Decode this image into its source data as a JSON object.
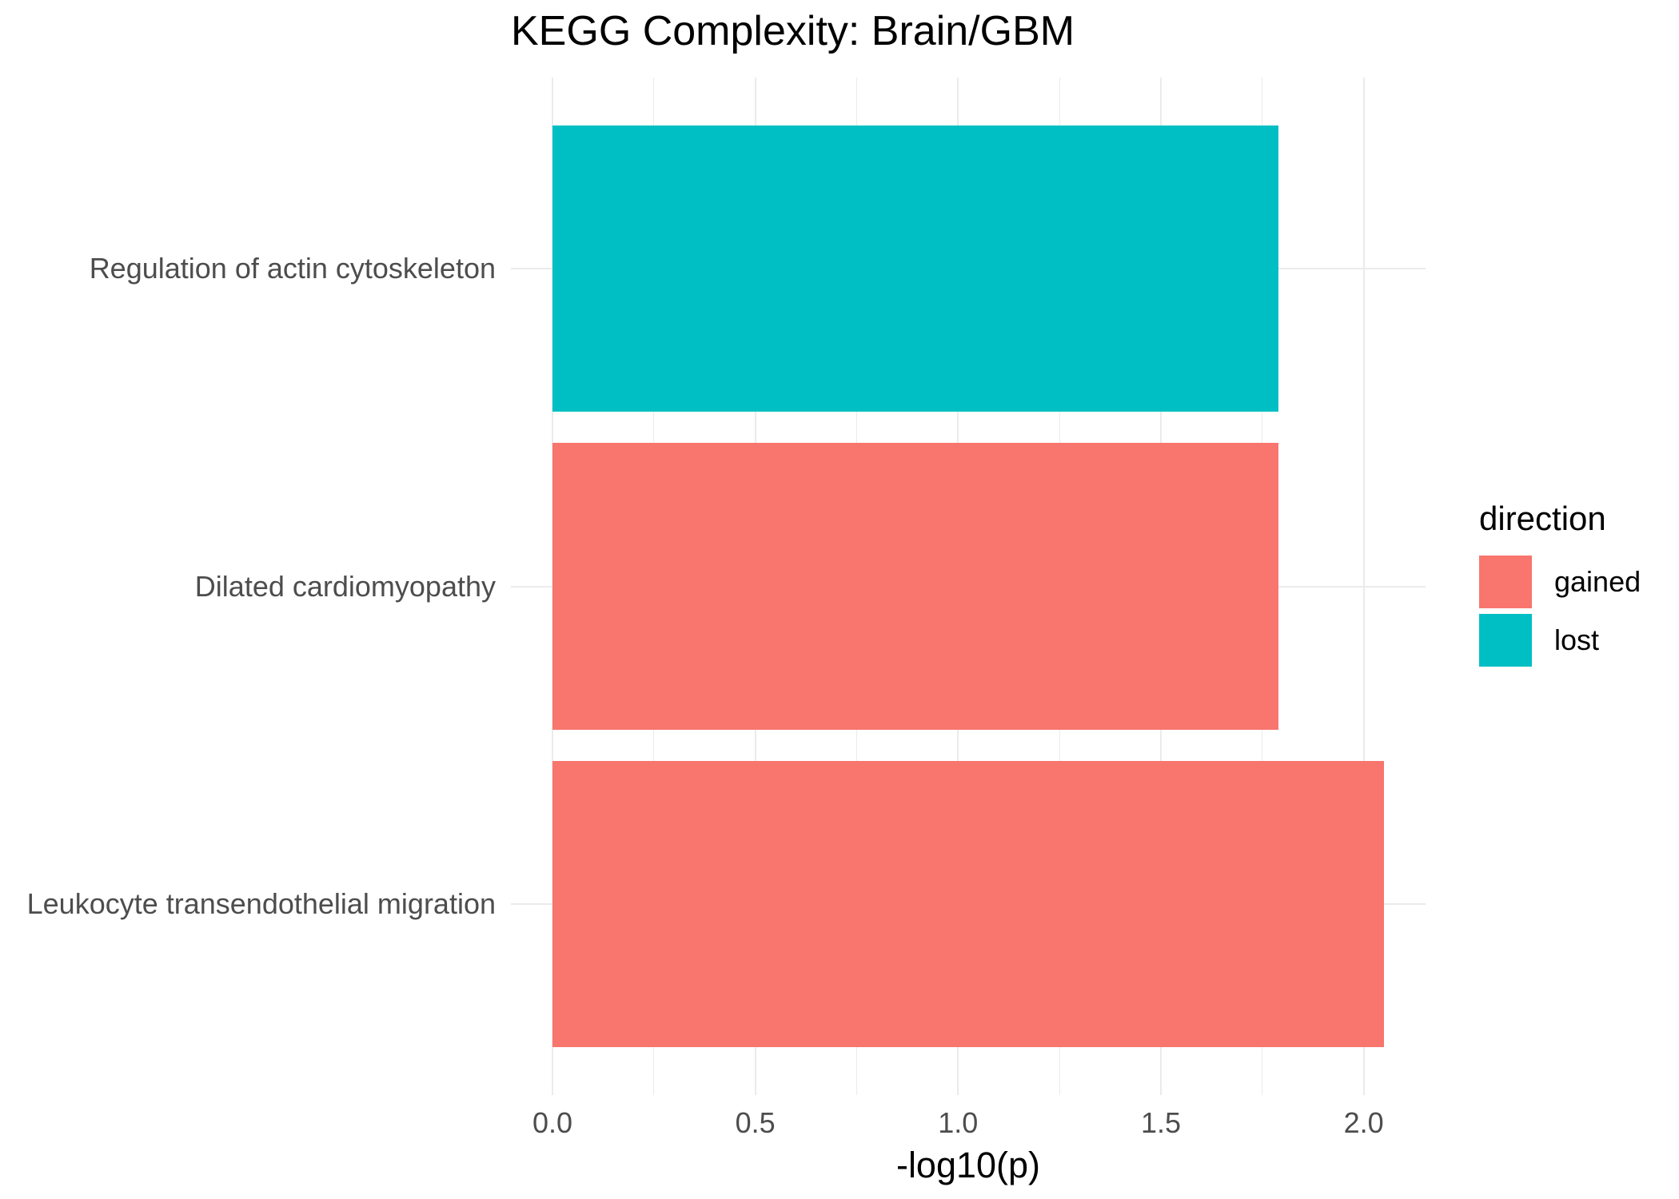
{
  "chart_data": {
    "type": "bar",
    "orientation": "horizontal",
    "title": "KEGG Complexity: Brain/GBM",
    "xlabel": "-log10(p)",
    "ylabel": "",
    "categories": [
      "Regulation of actin cytoskeleton",
      "Dilated cardiomyopathy",
      "Leukocyte transendothelial migration"
    ],
    "values": [
      1.79,
      1.79,
      2.05
    ],
    "directions": [
      "lost",
      "gained",
      "gained"
    ],
    "colors": {
      "gained": "#F8766D",
      "lost": "#00BFC4"
    },
    "x_ticks": [
      {
        "value": 0.0,
        "label": "0.0"
      },
      {
        "value": 0.5,
        "label": "0.5"
      },
      {
        "value": 1.0,
        "label": "1.0"
      },
      {
        "value": 1.5,
        "label": "1.5"
      },
      {
        "value": 2.0,
        "label": "2.0"
      }
    ],
    "x_minor_ticks": [
      0.25,
      0.75,
      1.25,
      1.75
    ],
    "xlim": [
      0,
      2.05
    ],
    "grid": true,
    "legend_position": "right",
    "background_color": "#FFFFFF",
    "grid_color": "#EBEBEB",
    "axis_text_color": "#4D4D4D",
    "title_color": "#000000",
    "legend": {
      "title": "direction",
      "entries": [
        {
          "label": "gained",
          "color": "#F8766D"
        },
        {
          "label": "lost",
          "color": "#00BFC4"
        }
      ]
    }
  }
}
